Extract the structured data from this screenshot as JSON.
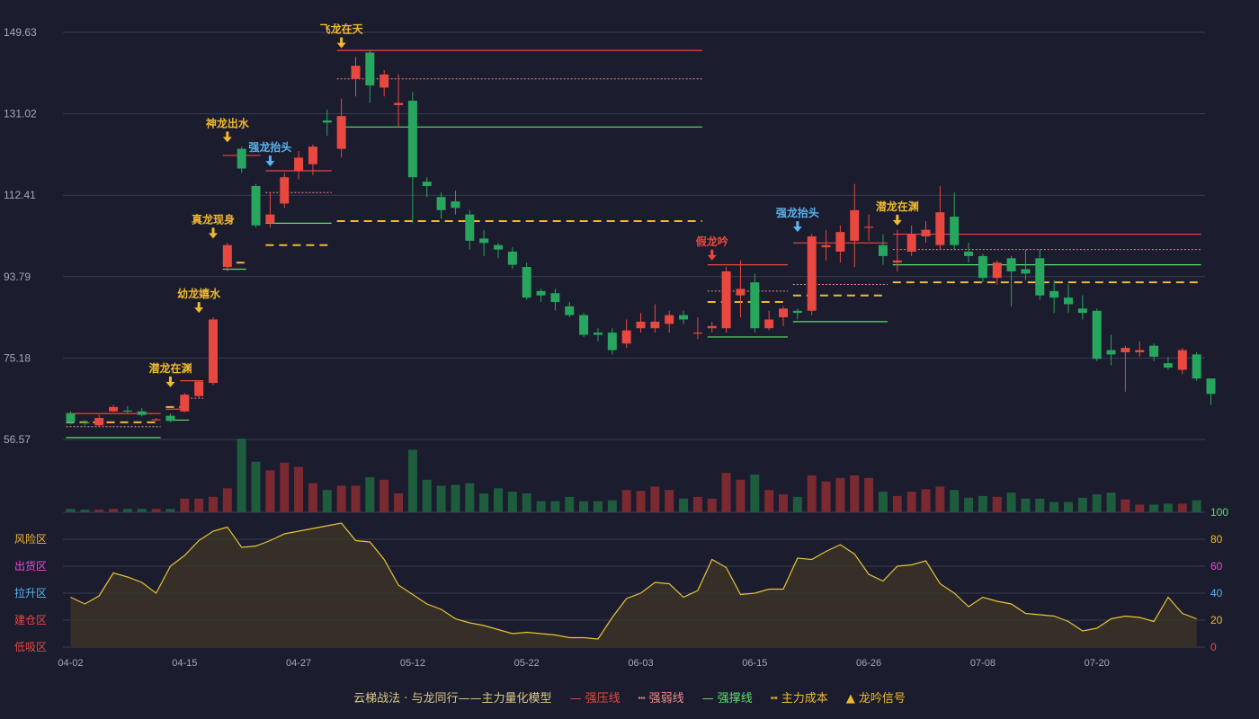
{
  "chart_data": {
    "type": "candlestick",
    "price_ylim": [
      56.57,
      149.63
    ],
    "price_ticks": [
      "149.63",
      "131.02",
      "112.41",
      "93.79",
      "75.18",
      "56.57"
    ],
    "x_tick_labels": [
      "04-02",
      "04-15",
      "04-27",
      "05-12",
      "05-22",
      "06-03",
      "06-15",
      "06-26",
      "07-08",
      "07-20"
    ],
    "x_tick_index": [
      0,
      8,
      16,
      24,
      32,
      40,
      48,
      56,
      64,
      72
    ],
    "osc_ticks": [
      "100",
      "80",
      "60",
      "40",
      "20",
      "0"
    ],
    "osc_zones": [
      "风险区",
      "出货区",
      "拉升区",
      "建仓区",
      "低吸区"
    ],
    "colors": {
      "up": "#e8483f",
      "down": "#27a65d",
      "signal": "#f0b92e",
      "blue": "#5ab4f0",
      "osc": "#e6c33a"
    },
    "candles": [
      [
        62.5,
        60.5,
        63.0,
        60.0
      ],
      [
        60.5,
        60.3,
        61.0,
        59.8
      ],
      [
        59.8,
        61.5,
        62.2,
        59.5
      ],
      [
        63.0,
        64.0,
        64.5,
        62.8
      ],
      [
        63.2,
        63.0,
        64.2,
        62.5
      ],
      [
        63.0,
        62.2,
        63.8,
        61.8
      ],
      [
        61.0,
        61.2,
        61.5,
        60.8
      ],
      [
        62.0,
        60.8,
        62.5,
        60.5
      ],
      [
        63.0,
        66.8,
        67.2,
        62.8
      ],
      [
        66.5,
        69.8,
        70.0,
        66.0
      ],
      [
        69.5,
        84.0,
        84.5,
        69.0
      ],
      [
        96.0,
        101.0,
        101.5,
        95.0
      ],
      [
        123.0,
        118.5,
        123.5,
        117.5
      ],
      [
        114.5,
        105.5,
        115.0,
        105.0
      ],
      [
        106.0,
        108.0,
        113.0,
        105.0
      ],
      [
        110.5,
        116.5,
        117.5,
        109.5
      ],
      [
        118.0,
        121.0,
        122.5,
        116.0
      ],
      [
        119.5,
        123.5,
        124.0,
        117.0
      ],
      [
        129.5,
        129.0,
        132.0,
        126.0
      ],
      [
        123.0,
        130.5,
        134.5,
        121.0
      ],
      [
        139.0,
        142.0,
        144.0,
        135.0
      ],
      [
        145.0,
        137.5,
        145.5,
        133.5
      ],
      [
        137.0,
        140.0,
        141.0,
        135.0
      ],
      [
        133.0,
        133.5,
        140.0,
        128.0
      ],
      [
        134.0,
        116.5,
        136.0,
        106.0
      ],
      [
        115.5,
        114.5,
        116.5,
        112.0
      ],
      [
        112.0,
        109.0,
        113.0,
        107.0
      ],
      [
        111.0,
        109.5,
        113.5,
        108.0
      ],
      [
        108.0,
        102.0,
        109.0,
        100.0
      ],
      [
        102.5,
        101.5,
        104.5,
        98.5
      ],
      [
        101.0,
        100.0,
        101.5,
        98.0
      ],
      [
        99.5,
        96.5,
        100.5,
        95.5
      ],
      [
        96.0,
        89.0,
        97.0,
        88.5
      ],
      [
        90.5,
        89.5,
        91.0,
        88.0
      ],
      [
        90.0,
        88.0,
        91.0,
        86.0
      ],
      [
        87.0,
        85.0,
        88.0,
        84.5
      ],
      [
        85.0,
        80.5,
        85.5,
        80.0
      ],
      [
        81.0,
        80.5,
        82.0,
        79.0
      ],
      [
        81.0,
        77.0,
        82.0,
        76.0
      ],
      [
        78.5,
        81.5,
        84.0,
        77.5
      ],
      [
        82.0,
        83.5,
        85.5,
        81.0
      ],
      [
        82.0,
        83.5,
        87.5,
        81.0
      ],
      [
        83.0,
        85.0,
        86.0,
        81.0
      ],
      [
        85.0,
        84.0,
        86.0,
        83.0
      ],
      [
        80.8,
        81.0,
        84.5,
        79.5
      ],
      [
        82.0,
        82.5,
        83.5,
        81.0
      ],
      [
        82.0,
        95.0,
        96.0,
        81.0
      ],
      [
        89.5,
        91.0,
        97.5,
        84.5
      ],
      [
        92.5,
        82.0,
        94.5,
        81.0
      ],
      [
        82.0,
        84.0,
        86.0,
        81.5
      ],
      [
        84.5,
        86.5,
        87.0,
        82.5
      ],
      [
        86.0,
        85.5,
        86.5,
        84.0
      ],
      [
        86.0,
        103.0,
        103.5,
        85.0
      ],
      [
        100.5,
        101.0,
        104.5,
        97.5
      ],
      [
        99.5,
        104.0,
        105.5,
        97.0
      ],
      [
        102.0,
        109.0,
        115.0,
        96.0
      ],
      [
        105.0,
        105.2,
        108.0,
        102.0
      ],
      [
        101.0,
        98.5,
        103.5,
        96.5
      ],
      [
        97.0,
        97.5,
        104.5,
        95.0
      ],
      [
        99.5,
        103.5,
        105.5,
        98.5
      ],
      [
        103.0,
        104.5,
        106.5,
        101.5
      ],
      [
        101.0,
        108.5,
        114.5,
        100.0
      ],
      [
        107.5,
        101.0,
        113.0,
        100.0
      ],
      [
        99.5,
        98.5,
        101.5,
        97.0
      ],
      [
        98.5,
        93.5,
        99.0,
        92.5
      ],
      [
        93.5,
        97.0,
        97.5,
        92.0
      ],
      [
        98.0,
        95.0,
        98.5,
        87.0
      ],
      [
        95.5,
        94.5,
        100.0,
        93.0
      ],
      [
        98.0,
        89.5,
        100.0,
        88.5
      ],
      [
        90.5,
        89.0,
        93.0,
        85.5
      ],
      [
        89.0,
        87.5,
        92.0,
        85.5
      ],
      [
        86.5,
        85.5,
        89.5,
        84.0
      ],
      [
        86.0,
        75.0,
        86.5,
        74.5
      ],
      [
        77.0,
        76.0,
        80.5,
        73.5
      ],
      [
        76.5,
        77.5,
        78.0,
        67.5
      ],
      [
        76.5,
        77.0,
        79.0,
        75.5
      ],
      [
        78.0,
        75.5,
        78.5,
        74.5
      ],
      [
        74.0,
        73.0,
        75.5,
        72.5
      ],
      [
        72.5,
        77.0,
        77.5,
        71.5
      ],
      [
        76.0,
        70.5,
        76.5,
        70.0
      ],
      [
        70.5,
        67.0,
        70.5,
        64.5
      ]
    ],
    "volumes": [
      4,
      3,
      3,
      4,
      4,
      4,
      4,
      4,
      16,
      16,
      18,
      28,
      86,
      59,
      49,
      58,
      53,
      34,
      26,
      31,
      31,
      41,
      38,
      22,
      73,
      38,
      31,
      32,
      34,
      22,
      28,
      24,
      22,
      13,
      13,
      18,
      13,
      13,
      14,
      26,
      25,
      30,
      26,
      16,
      18,
      16,
      46,
      38,
      44,
      26,
      21,
      18,
      43,
      36,
      40,
      43,
      40,
      24,
      19,
      24,
      27,
      30,
      26,
      17,
      19,
      18,
      23,
      16,
      16,
      12,
      12,
      17,
      21,
      23,
      15,
      9,
      9,
      10,
      10,
      14
    ],
    "oscillator": [
      37,
      32,
      38,
      55,
      52,
      48,
      40,
      60,
      68,
      79,
      86,
      89,
      74,
      75,
      79,
      84,
      86,
      88,
      90,
      92,
      79,
      78,
      65,
      46,
      39,
      32,
      28,
      21,
      18,
      16,
      13,
      10,
      11,
      10,
      9,
      7,
      7,
      6,
      22,
      36,
      40,
      48,
      47,
      37,
      42,
      65,
      59,
      39,
      40,
      43,
      43,
      66,
      65,
      71,
      76,
      69,
      54,
      49,
      60,
      61,
      64,
      47,
      40,
      30,
      37,
      34,
      32,
      25,
      24,
      23,
      19,
      12,
      14,
      21,
      23,
      22,
      19,
      37,
      25,
      21
    ],
    "levels": [
      {
        "type": "strong_resist",
        "from": 0,
        "to": 6,
        "y": 62.5
      },
      {
        "type": "weak",
        "from": 0,
        "to": 6,
        "y": 59.5
      },
      {
        "type": "support",
        "from": 0,
        "to": 6,
        "y": 57.0
      },
      {
        "type": "cost",
        "from": 0,
        "to": 6,
        "y": 60.5
      },
      {
        "type": "strong_resist",
        "from": 7,
        "to": 8,
        "y": 63.5
      },
      {
        "type": "support",
        "from": 7,
        "to": 8,
        "y": 61.0
      },
      {
        "type": "cost",
        "from": 7,
        "to": 8,
        "y": 64.0
      },
      {
        "type": "strong_resist",
        "from": 8,
        "to": 9,
        "y": 70.0
      },
      {
        "type": "weak",
        "from": 8,
        "to": 9,
        "y": 66.0
      },
      {
        "type": "cost",
        "from": 11,
        "to": 12,
        "y": 97.0
      },
      {
        "type": "support",
        "from": 11,
        "to": 12,
        "y": 95.5
      },
      {
        "type": "strong_resist",
        "from": 11,
        "to": 13,
        "y": 121.5
      },
      {
        "type": "strong_resist",
        "from": 14,
        "to": 18,
        "y": 118.0
      },
      {
        "type": "weak",
        "from": 14,
        "to": 18,
        "y": 113.0
      },
      {
        "type": "support",
        "from": 14,
        "to": 18,
        "y": 106.0
      },
      {
        "type": "cost",
        "from": 14,
        "to": 18,
        "y": 101.0
      },
      {
        "type": "strong_resist",
        "from": 19,
        "to": 44,
        "y": 145.5
      },
      {
        "type": "weak",
        "from": 19,
        "to": 44,
        "y": 139.0
      },
      {
        "type": "support",
        "from": 19,
        "to": 44,
        "y": 128.0
      },
      {
        "type": "cost",
        "from": 19,
        "to": 44,
        "y": 106.5
      },
      {
        "type": "strong_resist",
        "from": 45,
        "to": 50,
        "y": 96.5
      },
      {
        "type": "weak",
        "from": 45,
        "to": 50,
        "y": 90.5
      },
      {
        "type": "support",
        "from": 45,
        "to": 50,
        "y": 80.0
      },
      {
        "type": "cost",
        "from": 45,
        "to": 50,
        "y": 88.0
      },
      {
        "type": "strong_resist",
        "from": 51,
        "to": 57,
        "y": 101.5
      },
      {
        "type": "weak",
        "from": 51,
        "to": 57,
        "y": 92.0
      },
      {
        "type": "support",
        "from": 51,
        "to": 57,
        "y": 83.5
      },
      {
        "type": "cost",
        "from": 51,
        "to": 57,
        "y": 89.5
      },
      {
        "type": "strong_resist",
        "from": 58,
        "to": 79,
        "y": 103.5
      },
      {
        "type": "weak",
        "from": 58,
        "to": 79,
        "y": 100.0
      },
      {
        "type": "support",
        "from": 58,
        "to": 79,
        "y": 96.5
      },
      {
        "type": "cost",
        "from": 58,
        "to": 79,
        "y": 92.5
      }
    ],
    "annotations": [
      {
        "label": "潜龙在渊",
        "index": 7,
        "y": 68.5,
        "color": "signal"
      },
      {
        "label": "幼龙嬉水",
        "index": 9,
        "y": 85.5,
        "color": "signal"
      },
      {
        "label": "真龙现身",
        "index": 10,
        "y": 102.5,
        "color": "signal"
      },
      {
        "label": "神龙出水",
        "index": 11,
        "y": 124.5,
        "color": "signal"
      },
      {
        "label": "强龙抬头",
        "index": 14,
        "y": 119.0,
        "color": "blue"
      },
      {
        "label": "飞龙在天",
        "index": 19,
        "y": 146.0,
        "color": "signal"
      },
      {
        "label": "假龙吟",
        "index": 45,
        "y": 97.5,
        "color": "up"
      },
      {
        "label": "强龙抬头",
        "index": 51,
        "y": 104.0,
        "color": "blue"
      },
      {
        "label": "潜龙在渊",
        "index": 58,
        "y": 105.5,
        "color": "signal"
      }
    ]
  },
  "legend": {
    "title": "云梯战法 · 与龙同行——主力量化模型",
    "items": [
      {
        "label": "强压线",
        "color": "#e8483f",
        "style": "solid"
      },
      {
        "label": "强弱线",
        "color": "#f08a8a",
        "style": "dot"
      },
      {
        "label": "强撑线",
        "color": "#5be06a",
        "style": "solid"
      },
      {
        "label": "主力成本",
        "color": "#f0b92e",
        "style": "dash"
      },
      {
        "label": "龙吟信号",
        "color": "#f0b92e",
        "style": "triangle"
      }
    ]
  }
}
